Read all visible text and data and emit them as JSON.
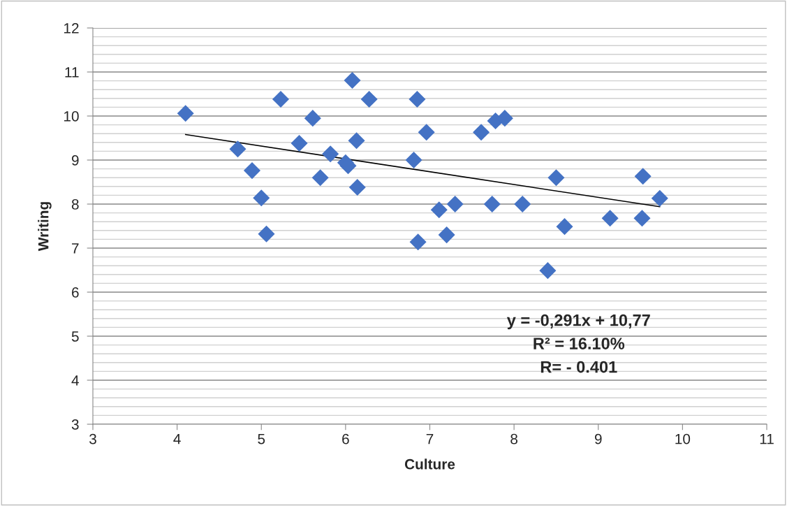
{
  "chart_data": {
    "type": "scatter",
    "xlabel": "Culture",
    "ylabel": "Writing",
    "x": [
      4.1,
      4.72,
      4.89,
      5.0,
      5.06,
      5.23,
      5.45,
      5.61,
      5.7,
      5.82,
      6.0,
      6.03,
      6.08,
      6.13,
      6.14,
      6.28,
      6.81,
      6.85,
      6.86,
      6.96,
      7.11,
      7.2,
      7.3,
      7.61,
      7.74,
      7.78,
      7.89,
      8.1,
      8.4,
      8.5,
      8.6,
      9.14,
      9.52,
      9.53,
      9.73
    ],
    "series": [
      {
        "color": "#4472c4",
        "marker": "diamond",
        "values": [
          10.06,
          9.25,
          8.76,
          8.14,
          7.32,
          10.38,
          9.38,
          9.95,
          8.6,
          9.14,
          8.94,
          8.87,
          10.81,
          9.44,
          8.38,
          10.38,
          9.0,
          10.38,
          7.14,
          9.63,
          7.87,
          7.3,
          8.0,
          9.63,
          8.0,
          9.89,
          9.95,
          8.0,
          6.49,
          8.6,
          7.49,
          7.68,
          7.68,
          8.63,
          8.13
        ]
      },
      {
        "type": "line",
        "color": "#000000",
        "marker": "none",
        "x": [
          4.1,
          9.73
        ],
        "values": [
          9.58,
          7.94
        ]
      }
    ],
    "annotations": [
      "y = -0,291x + 10,77",
      "R² = 16.10%",
      "R= - 0.401"
    ],
    "xlim": [
      3,
      11
    ],
    "xticks": [
      3,
      4,
      5,
      6,
      7,
      8,
      9,
      10,
      11
    ],
    "ylim": [
      3,
      12
    ],
    "yticks": [
      3,
      {
        "value": 3.2,
        "label": null
      },
      {
        "value": 3.4,
        "label": null
      },
      {
        "value": 3.6,
        "label": null
      },
      {
        "value": 3.8,
        "label": null
      },
      4,
      {
        "value": 4.2,
        "label": null
      },
      {
        "value": 4.4,
        "label": null
      },
      {
        "value": 4.6,
        "label": null
      },
      {
        "value": 4.8,
        "label": null
      },
      5,
      {
        "value": 5.2,
        "label": null
      },
      {
        "value": 5.4,
        "label": null
      },
      {
        "value": 5.6,
        "label": null
      },
      {
        "value": 5.8,
        "label": null
      },
      6,
      {
        "value": 6.2,
        "label": null
      },
      {
        "value": 6.4,
        "label": null
      },
      {
        "value": 6.6,
        "label": null
      },
      {
        "value": 6.8,
        "label": null
      },
      7,
      {
        "value": 7.2,
        "label": null
      },
      {
        "value": 7.4,
        "label": null
      },
      {
        "value": 7.6,
        "label": null
      },
      {
        "value": 7.8,
        "label": null
      },
      8,
      {
        "value": 8.2,
        "label": null
      },
      {
        "value": 8.4,
        "label": null
      },
      {
        "value": 8.6,
        "label": null
      },
      {
        "value": 8.8,
        "label": null
      },
      9,
      {
        "value": 9.2,
        "label": null
      },
      {
        "value": 9.4,
        "label": null
      },
      {
        "value": 9.6,
        "label": null
      },
      {
        "value": 9.8,
        "label": null
      },
      10,
      {
        "value": 10.2,
        "label": null
      },
      {
        "value": 10.4,
        "label": null
      },
      {
        "value": 10.6,
        "label": null
      },
      {
        "value": 10.8,
        "label": null
      },
      11,
      {
        "value": 11.2,
        "label": null
      },
      {
        "value": 11.4,
        "label": null
      },
      {
        "value": 11.6,
        "label": null
      },
      {
        "value": 11.8,
        "label": null
      },
      12
    ],
    "grid": "y",
    "legend": false
  }
}
